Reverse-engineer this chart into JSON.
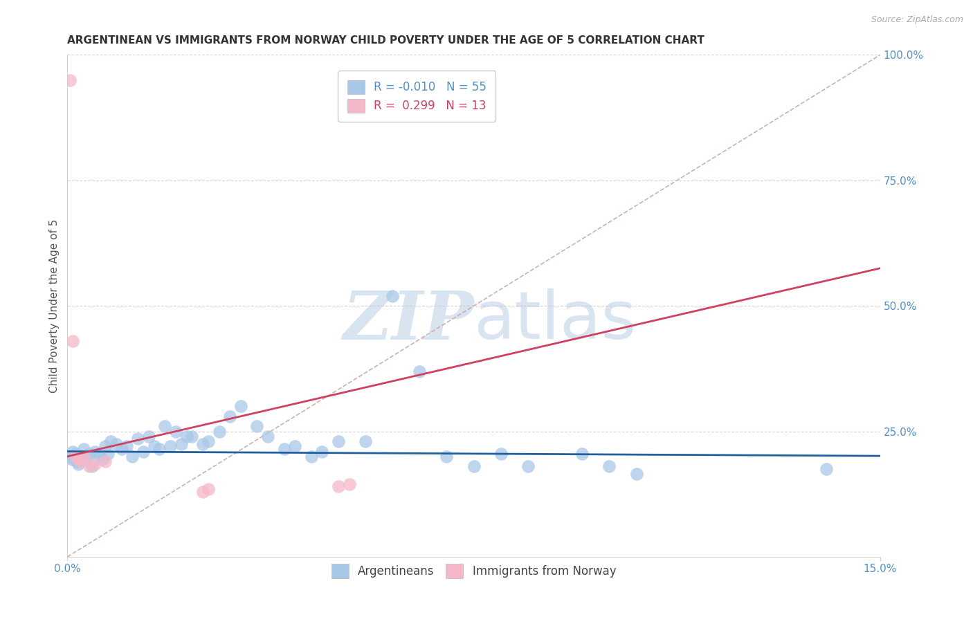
{
  "title": "ARGENTINEAN VS IMMIGRANTS FROM NORWAY CHILD POVERTY UNDER THE AGE OF 5 CORRELATION CHART",
  "source": "Source: ZipAtlas.com",
  "ylabel_left": "Child Poverty Under the Age of 5",
  "xlim": [
    0.0,
    15.0
  ],
  "ylim": [
    0.0,
    100.0
  ],
  "blue_R": -0.01,
  "blue_N": 55,
  "pink_R": 0.299,
  "pink_N": 13,
  "legend_blue_label": "Argentineans",
  "legend_pink_label": "Immigrants from Norway",
  "blue_color": "#a8c8e8",
  "pink_color": "#f5b8c8",
  "blue_line_color": "#2060a0",
  "pink_line_color": "#d04060",
  "diag_line_color": "#c8a8a8",
  "watermark_color": "#d8e4f0",
  "blue_dots": [
    [
      0.05,
      20.0
    ],
    [
      0.08,
      19.5
    ],
    [
      0.1,
      21.0
    ],
    [
      0.15,
      20.5
    ],
    [
      0.18,
      19.0
    ],
    [
      0.2,
      18.5
    ],
    [
      0.25,
      20.0
    ],
    [
      0.3,
      21.5
    ],
    [
      0.35,
      19.5
    ],
    [
      0.4,
      20.5
    ],
    [
      0.45,
      18.0
    ],
    [
      0.5,
      21.0
    ],
    [
      0.6,
      20.0
    ],
    [
      0.65,
      19.5
    ],
    [
      0.7,
      22.0
    ],
    [
      0.75,
      20.5
    ],
    [
      0.8,
      23.0
    ],
    [
      0.9,
      22.5
    ],
    [
      1.0,
      21.5
    ],
    [
      1.1,
      22.0
    ],
    [
      1.2,
      20.0
    ],
    [
      1.3,
      23.5
    ],
    [
      1.4,
      21.0
    ],
    [
      1.5,
      24.0
    ],
    [
      1.6,
      22.0
    ],
    [
      1.7,
      21.5
    ],
    [
      1.8,
      26.0
    ],
    [
      1.9,
      22.0
    ],
    [
      2.0,
      25.0
    ],
    [
      2.1,
      22.5
    ],
    [
      2.2,
      24.0
    ],
    [
      2.3,
      24.0
    ],
    [
      2.5,
      22.5
    ],
    [
      2.6,
      23.0
    ],
    [
      2.8,
      25.0
    ],
    [
      3.0,
      28.0
    ],
    [
      3.2,
      30.0
    ],
    [
      3.5,
      26.0
    ],
    [
      3.7,
      24.0
    ],
    [
      4.0,
      21.5
    ],
    [
      4.2,
      22.0
    ],
    [
      4.5,
      20.0
    ],
    [
      4.7,
      21.0
    ],
    [
      5.0,
      23.0
    ],
    [
      5.5,
      23.0
    ],
    [
      6.0,
      52.0
    ],
    [
      6.5,
      37.0
    ],
    [
      7.0,
      20.0
    ],
    [
      7.5,
      18.0
    ],
    [
      8.0,
      20.5
    ],
    [
      8.5,
      18.0
    ],
    [
      9.5,
      20.5
    ],
    [
      10.0,
      18.0
    ],
    [
      10.5,
      16.5
    ],
    [
      14.0,
      17.5
    ]
  ],
  "pink_dots": [
    [
      0.05,
      95.0
    ],
    [
      0.1,
      43.0
    ],
    [
      0.15,
      20.0
    ],
    [
      0.2,
      19.5
    ],
    [
      0.25,
      19.0
    ],
    [
      0.3,
      20.0
    ],
    [
      0.4,
      18.0
    ],
    [
      0.5,
      18.5
    ],
    [
      0.7,
      19.0
    ],
    [
      2.5,
      13.0
    ],
    [
      2.6,
      13.5
    ],
    [
      5.0,
      14.0
    ],
    [
      5.2,
      14.5
    ]
  ],
  "title_fontsize": 11,
  "axis_label_fontsize": 11,
  "tick_fontsize": 11,
  "right_tick_color": "#5090d0",
  "bottom_tick_color": "#5090d0",
  "ylabel_color": "#555555",
  "grid_color": "#d0d0d0",
  "title_color": "#333333"
}
